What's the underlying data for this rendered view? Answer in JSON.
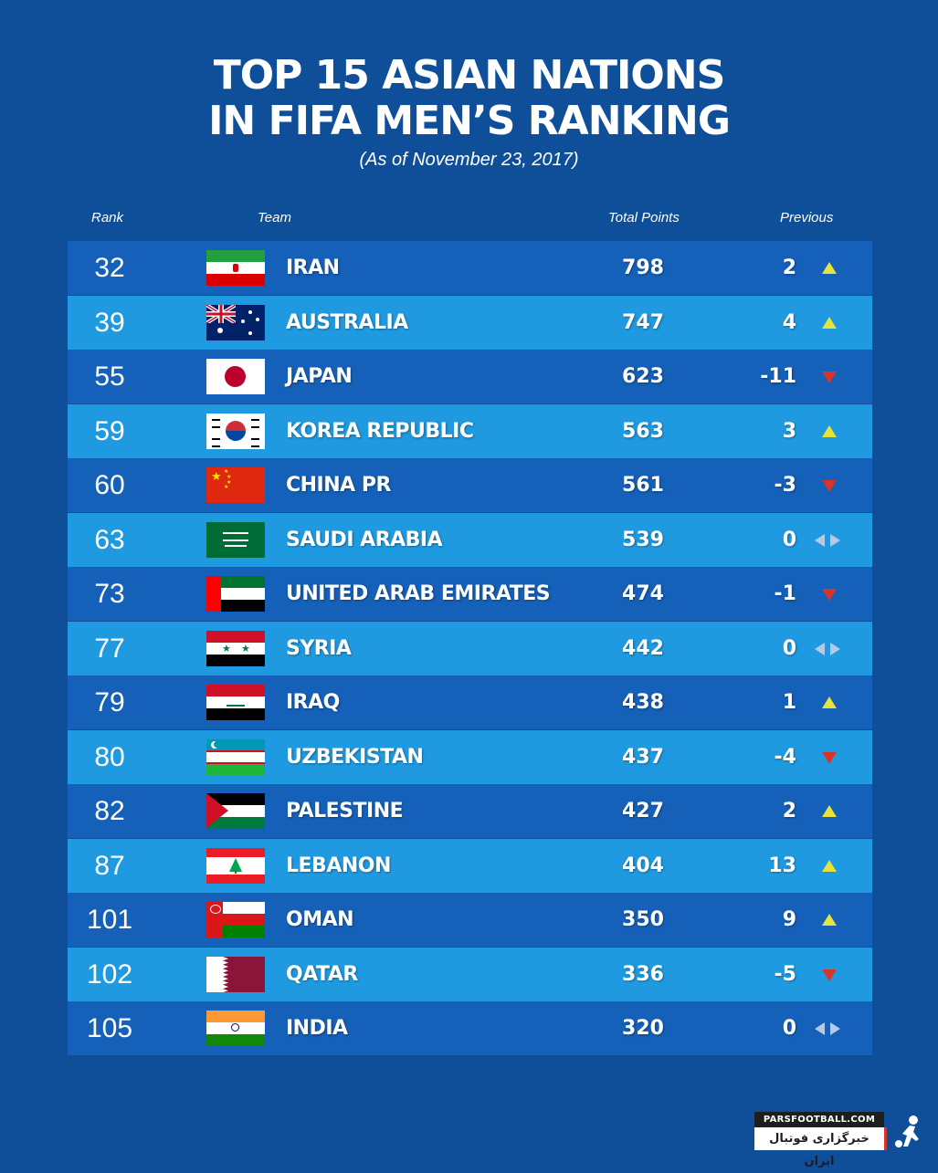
{
  "title_line1": "TOP 15 ASIAN NATIONS",
  "title_line2": "IN FIFA MEN’S  RANKING",
  "subtitle": "(As of November 23, 2017)",
  "headers": {
    "rank": "Rank",
    "team": "Team",
    "points": "Total Points",
    "previous": "Previous"
  },
  "rows": [
    {
      "rank": "32",
      "team": "IRAN",
      "points": "798",
      "previous": "2",
      "trend": "up",
      "flag": "iran-flag-icon"
    },
    {
      "rank": "39",
      "team": "AUSTRALIA",
      "points": "747",
      "previous": "4",
      "trend": "up",
      "flag": "australia-flag-icon"
    },
    {
      "rank": "55",
      "team": "JAPAN",
      "points": "623",
      "previous": "-11",
      "trend": "down",
      "flag": "japan-flag-icon"
    },
    {
      "rank": "59",
      "team": "KOREA REPUBLIC",
      "points": "563",
      "previous": "3",
      "trend": "up",
      "flag": "korea-flag-icon"
    },
    {
      "rank": "60",
      "team": "CHINA PR",
      "points": "561",
      "previous": "-3",
      "trend": "down",
      "flag": "china-flag-icon"
    },
    {
      "rank": "63",
      "team": "SAUDI ARABIA",
      "points": "539",
      "previous": "0",
      "trend": "same",
      "flag": "saudi-flag-icon"
    },
    {
      "rank": "73",
      "team": "UNITED ARAB EMIRATES",
      "points": "474",
      "previous": "-1",
      "trend": "down",
      "flag": "uae-flag-icon"
    },
    {
      "rank": "77",
      "team": "SYRIA",
      "points": "442",
      "previous": "0",
      "trend": "same",
      "flag": "syria-flag-icon"
    },
    {
      "rank": "79",
      "team": "IRAQ",
      "points": "438",
      "previous": "1",
      "trend": "up",
      "flag": "iraq-flag-icon"
    },
    {
      "rank": "80",
      "team": "UZBEKISTAN",
      "points": "437",
      "previous": "-4",
      "trend": "down",
      "flag": "uzbekistan-flag-icon"
    },
    {
      "rank": "82",
      "team": "PALESTINE",
      "points": "427",
      "previous": "2",
      "trend": "up",
      "flag": "palestine-flag-icon"
    },
    {
      "rank": "87",
      "team": "LEBANON",
      "points": "404",
      "previous": "13",
      "trend": "up",
      "flag": "lebanon-flag-icon"
    },
    {
      "rank": "101",
      "team": "OMAN",
      "points": "350",
      "previous": "9",
      "trend": "up",
      "flag": "oman-flag-icon"
    },
    {
      "rank": "102",
      "team": "QATAR",
      "points": "336",
      "previous": "-5",
      "trend": "down",
      "flag": "qatar-flag-icon"
    },
    {
      "rank": "105",
      "team": "INDIA",
      "points": "320",
      "previous": "0",
      "trend": "same",
      "flag": "india-flag-icon"
    }
  ],
  "colors": {
    "background": "#0f4f9a",
    "row_dark": "#1560b8",
    "row_light": "#1f9ae0",
    "up": "#e6e33a",
    "down": "#d8342c",
    "same": "#b9c8e4"
  },
  "watermark": {
    "site": "PARSFOOTBALL.COM",
    "name": "خبرگزاری فوتبال ایران"
  }
}
